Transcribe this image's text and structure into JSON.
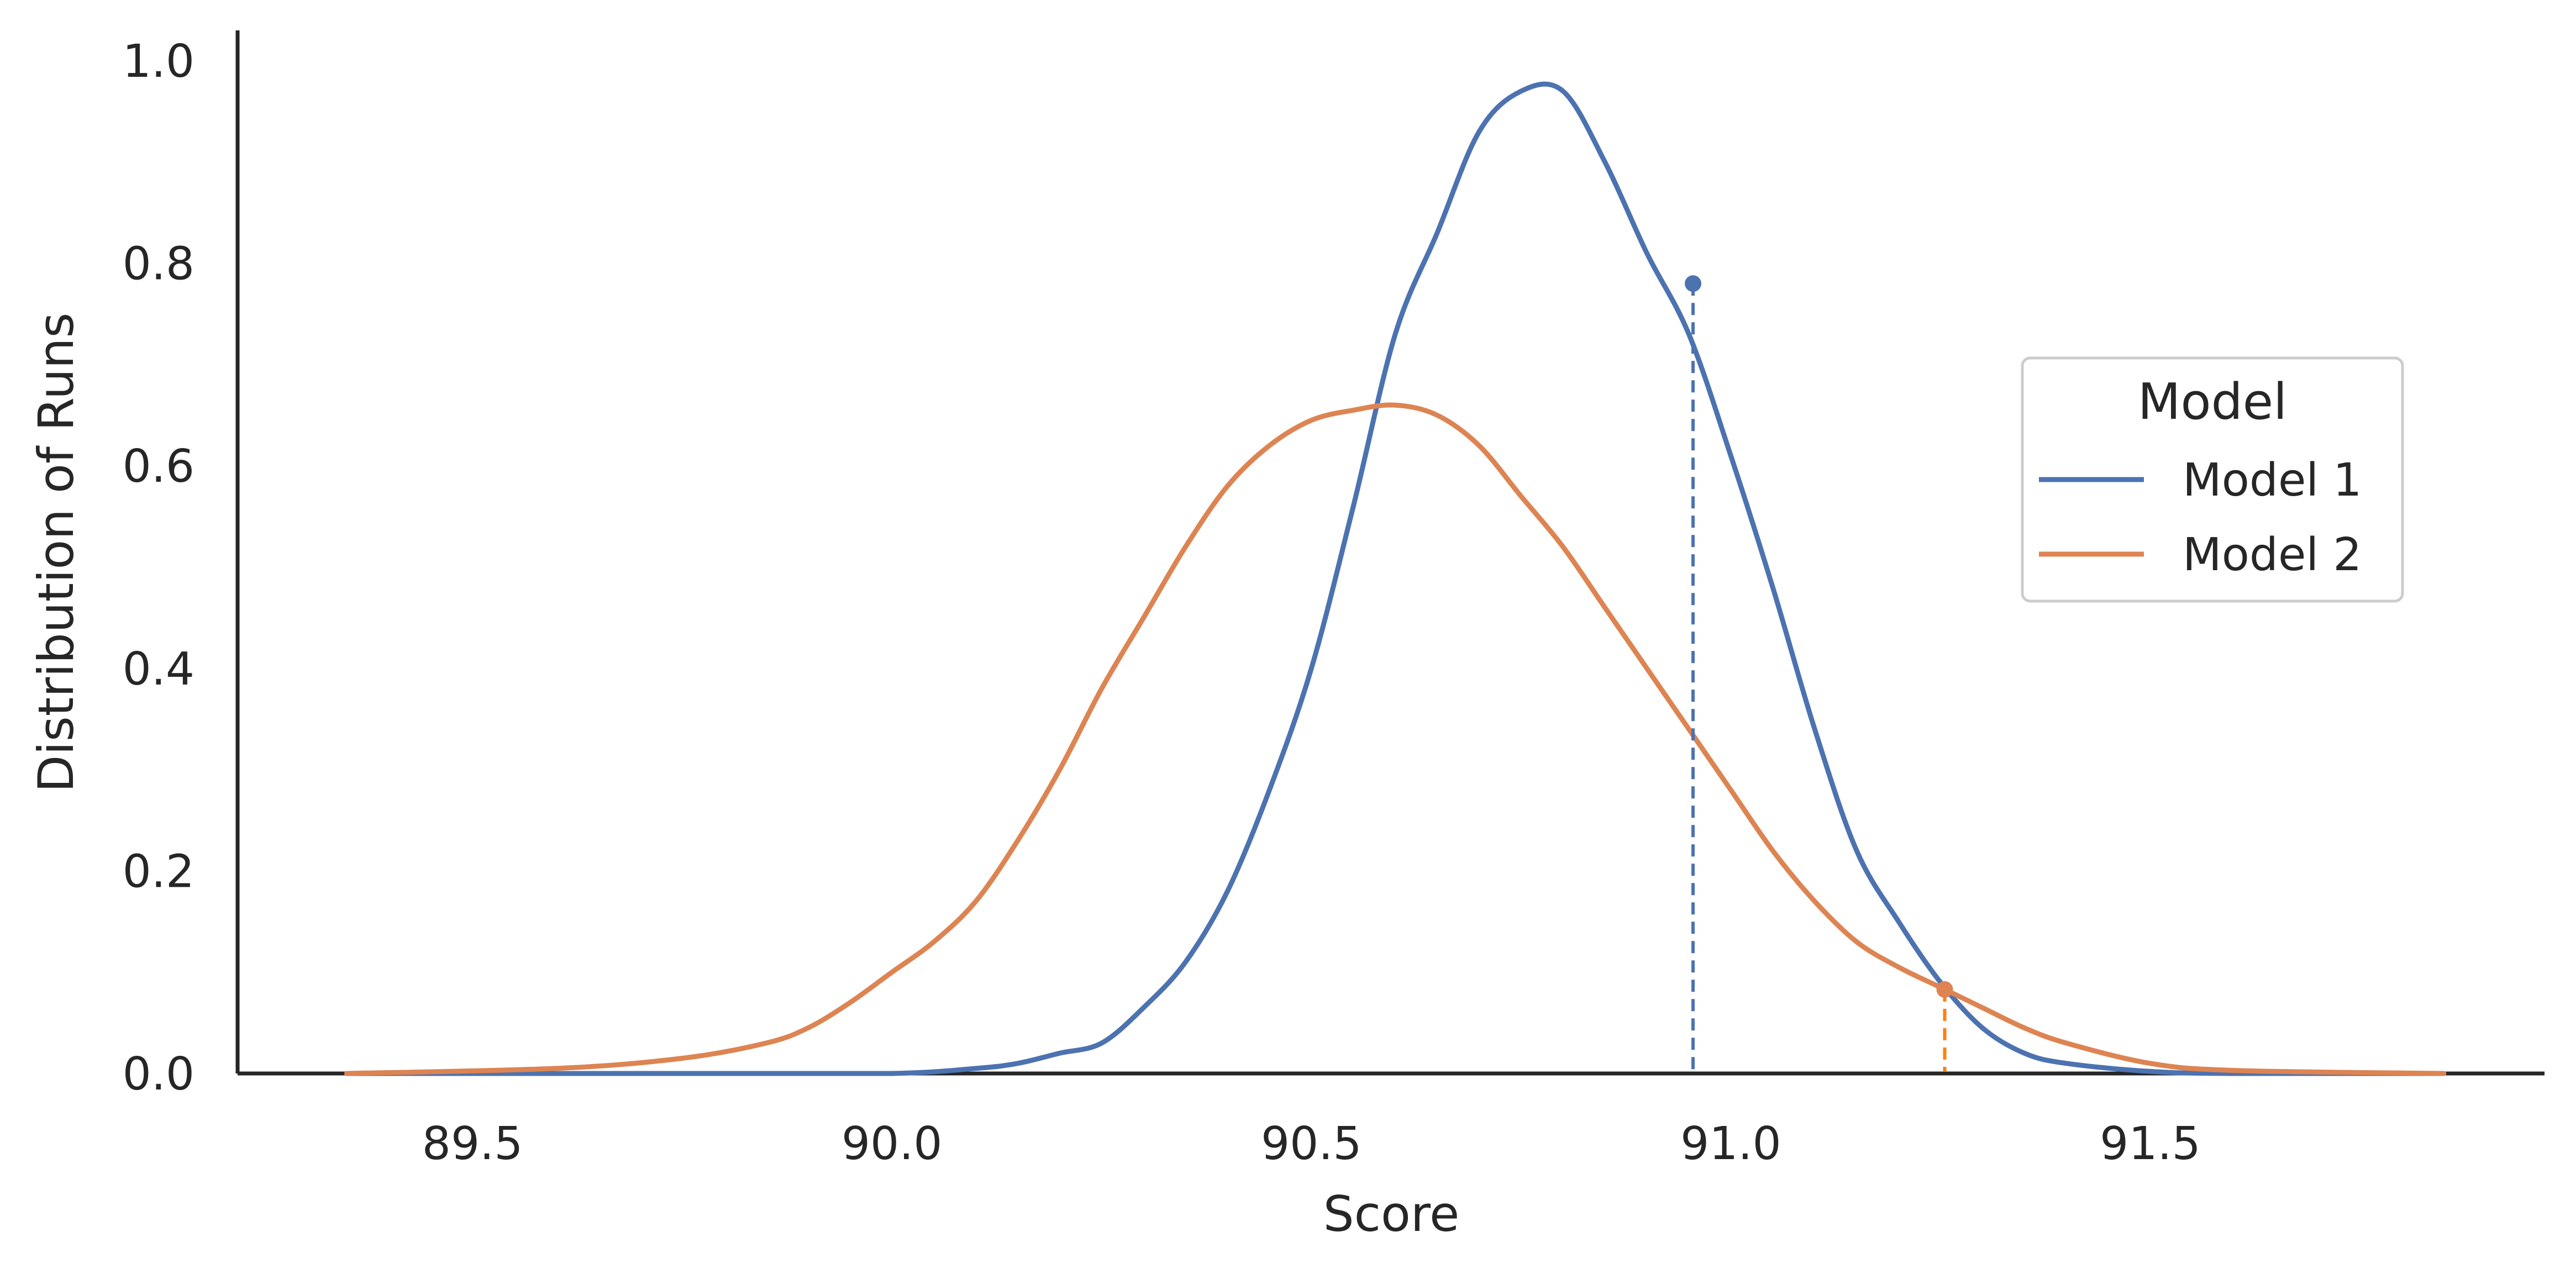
{
  "chart_data": {
    "type": "line",
    "title": "",
    "xlabel": "Score",
    "ylabel": "Distribution of Runs",
    "xlim": [
      89.22,
      91.97
    ],
    "ylim": [
      0.0,
      1.03
    ],
    "xticks": [
      "89.5",
      "90.0",
      "90.5",
      "91.0",
      "91.5"
    ],
    "yticks": [
      "0.0",
      "0.2",
      "0.4",
      "0.6",
      "0.8",
      "1.0"
    ],
    "grid": false,
    "legend": {
      "title": "Model",
      "placement": "center-right",
      "entries": [
        "Model 1",
        "Model 2"
      ]
    },
    "series": [
      {
        "name": "Model 1",
        "color": "#4c72b0",
        "x": [
          89.35,
          89.8,
          90.0,
          90.1,
          90.15,
          90.2,
          90.25,
          90.3,
          90.35,
          90.4,
          90.45,
          90.5,
          90.55,
          90.6,
          90.65,
          90.7,
          90.75,
          90.8,
          90.85,
          90.9,
          90.95,
          91.0,
          91.05,
          91.1,
          91.15,
          91.2,
          91.25,
          91.3,
          91.35,
          91.4,
          91.5,
          91.6,
          91.85
        ],
        "y": [
          0.0,
          0.0,
          0.0,
          0.005,
          0.01,
          0.02,
          0.03,
          0.065,
          0.11,
          0.18,
          0.28,
          0.4,
          0.56,
          0.73,
          0.83,
          0.93,
          0.97,
          0.97,
          0.9,
          0.81,
          0.73,
          0.61,
          0.48,
          0.34,
          0.22,
          0.15,
          0.09,
          0.045,
          0.02,
          0.01,
          0.002,
          0.0,
          0.0
        ],
        "marker": {
          "x": 90.955,
          "y": 0.78
        }
      },
      {
        "name": "Model 2",
        "color": "#dd8452",
        "x": [
          89.35,
          89.6,
          89.75,
          89.85,
          89.9,
          89.95,
          90.0,
          90.05,
          90.1,
          90.15,
          90.2,
          90.25,
          90.3,
          90.35,
          90.4,
          90.45,
          90.5,
          90.55,
          90.6,
          90.65,
          90.7,
          90.75,
          90.8,
          90.85,
          90.9,
          90.95,
          91.0,
          91.05,
          91.1,
          91.15,
          91.2,
          91.25,
          91.3,
          91.35,
          91.4,
          91.5,
          91.6,
          91.85
        ],
        "y": [
          0.0,
          0.005,
          0.015,
          0.03,
          0.045,
          0.07,
          0.1,
          0.13,
          0.17,
          0.23,
          0.3,
          0.38,
          0.45,
          0.52,
          0.58,
          0.62,
          0.645,
          0.655,
          0.66,
          0.65,
          0.62,
          0.57,
          0.52,
          0.46,
          0.4,
          0.34,
          0.28,
          0.22,
          0.17,
          0.13,
          0.105,
          0.085,
          0.065,
          0.045,
          0.03,
          0.01,
          0.003,
          0.0
        ],
        "marker": {
          "x": 91.255,
          "y": 0.083
        }
      }
    ],
    "reference_lines": [
      {
        "series": "Model 1",
        "x": 90.955,
        "y_top": 0.78,
        "style": "dashed",
        "color": "#4c72b0"
      },
      {
        "series": "Model 2",
        "x": 91.255,
        "y_top": 0.083,
        "style": "dashed",
        "color": "#ff7f0e"
      }
    ]
  }
}
